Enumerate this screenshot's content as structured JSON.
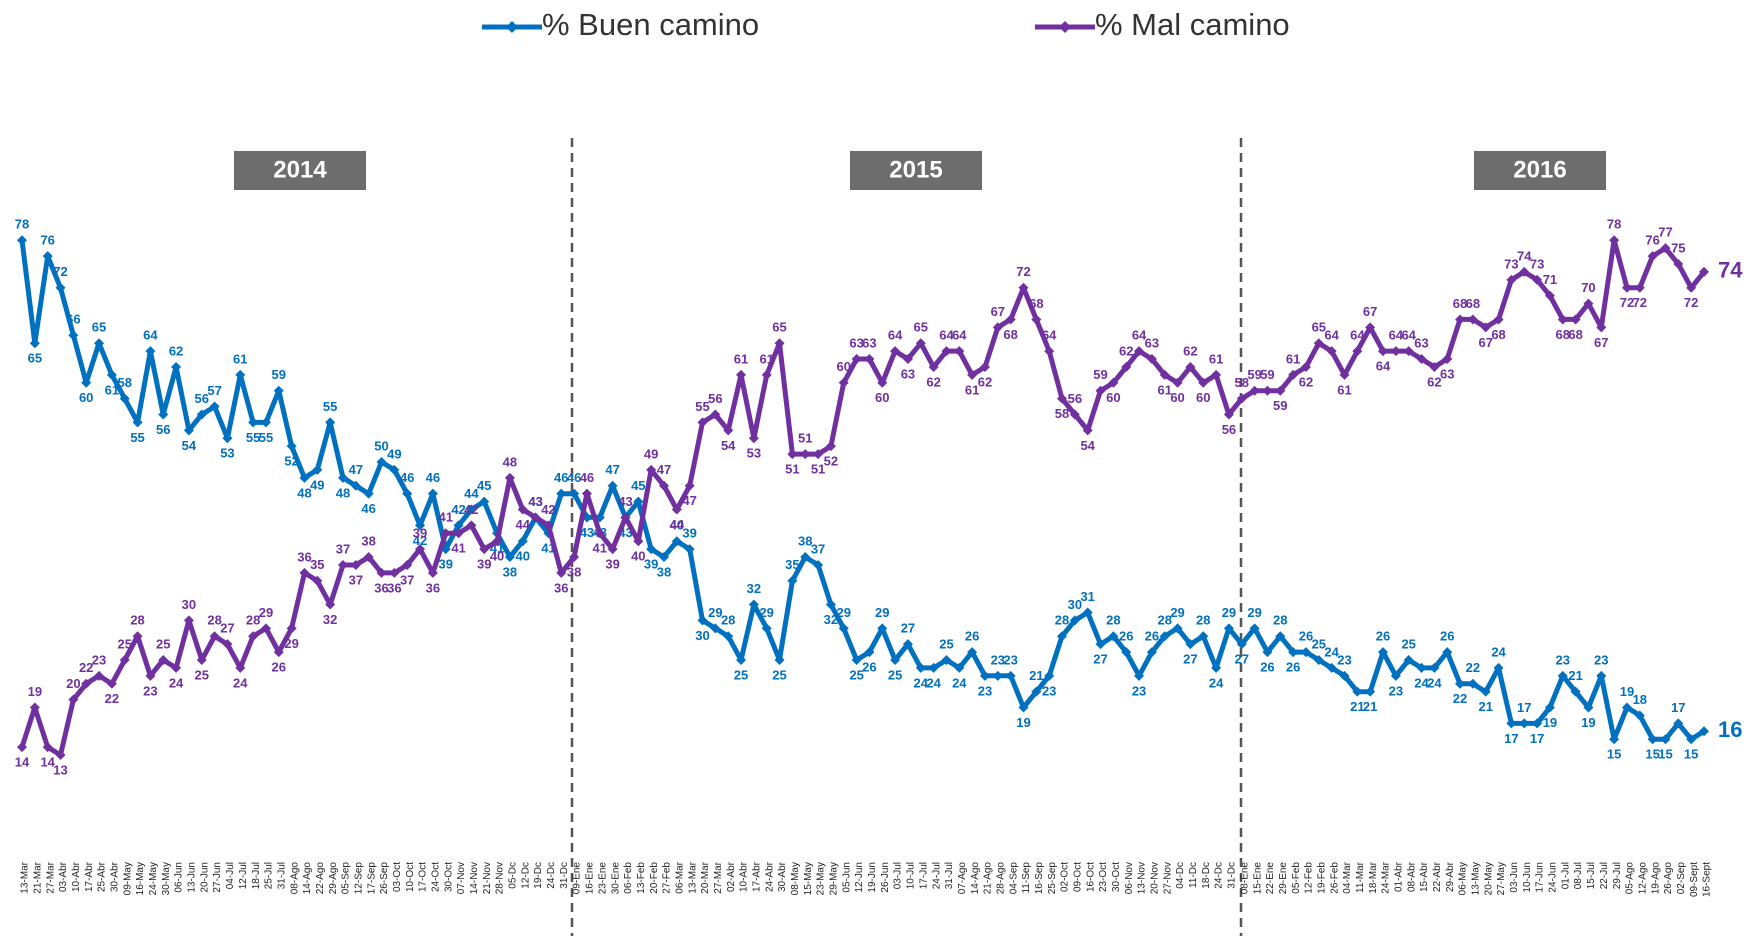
{
  "chart_data": {
    "type": "line",
    "legend": "top",
    "ylim": [
      0,
      100
    ],
    "periods": [
      "2014",
      "2015",
      "2016"
    ],
    "categories": [
      "13-Mar",
      "21-Mar",
      "27-Mar",
      "03-Abr",
      "10-Abr",
      "17-Abr",
      "25-Abr",
      "30-Abr",
      "09-May",
      "16-May",
      "24-May",
      "30-May",
      "06-Jun",
      "13-Jun",
      "20-Jun",
      "27-Jun",
      "04-Jul",
      "12-Jul",
      "18-Jul",
      "25-Jul",
      "31-Jul",
      "08-Ago",
      "14-Ago",
      "22-Ago",
      "29-Ago",
      "05-Sep",
      "12-Sep",
      "17-Sep",
      "26-Sep",
      "03-Oct",
      "10-Oct",
      "17-Oct",
      "24-Oct",
      "30-Oct",
      "07-Nov",
      "14-Nov",
      "21-Nov",
      "28-Nov",
      "05-Dc",
      "12-Dc",
      "19-Dc",
      "24-Dc",
      "31-Dc",
      "09-Ene",
      "16-Ene",
      "23-Ene",
      "30-Ene",
      "06-Feb",
      "13-Feb",
      "20-Feb",
      "27-Feb",
      "06-Mar",
      "13-Mar",
      "20-Mar",
      "27-Mar",
      "02-Abr",
      "10-Abr",
      "17-Abr",
      "24-Abr",
      "30-Abr",
      "08-May",
      "15-May",
      "23-May",
      "29-May",
      "05-Jun",
      "12-Jun",
      "19-Jun",
      "26-Jun",
      "03-Jul",
      "10-Jul",
      "17-Jul",
      "24-Jul",
      "31-Jul",
      "07-Ago",
      "14-Ago",
      "21-Ago",
      "28-Ago",
      "04-Sep",
      "11-Sep",
      "16-Sep",
      "25-Sep",
      "02-Oct",
      "09-Oct",
      "16-Oct",
      "23-Oct",
      "30-Oct",
      "06-Nov",
      "13-Nov",
      "20-Nov",
      "27-Nov",
      "04-Dc",
      "11-Dc",
      "18-Dc",
      "24-Dc",
      "31-Dc",
      "08-Ene",
      "15-Ene",
      "22-Ene",
      "29-Ene",
      "05-Feb",
      "12-Feb",
      "19-Feb",
      "26-Feb",
      "04-Mar",
      "11-Mar",
      "18-Mar",
      "24-Mar",
      "01-Abr",
      "08-Abr",
      "15-Abr",
      "22-Abr",
      "29-Abr",
      "06-May",
      "13-May",
      "20-May",
      "27-May",
      "03-Jun",
      "10-Jun",
      "17-Jun",
      "24-Jun",
      "01-Jul",
      "08-Jul",
      "15-Jul",
      "22-Jul",
      "29-Jul",
      "05-Ago",
      "12-Ago",
      "19-Ago",
      "26-Ago",
      "02-Sep",
      "09-Sept",
      "16-Sept"
    ],
    "series": [
      {
        "name": "% Buen camino",
        "color": "#0070c0",
        "values": [
          78,
          65,
          76,
          72,
          66,
          60,
          65,
          61,
          58,
          55,
          64,
          56,
          62,
          54,
          56,
          57,
          53,
          61,
          55,
          55,
          59,
          52,
          48,
          49,
          55,
          48,
          47,
          46,
          50,
          49,
          46,
          42,
          46,
          39,
          42,
          44,
          45,
          41,
          38,
          40,
          43,
          41,
          46,
          46,
          43,
          43,
          47,
          43,
          45,
          39,
          38,
          40,
          39,
          30,
          29,
          28,
          25,
          32,
          29,
          25,
          35,
          38,
          37,
          32,
          29,
          25,
          26,
          29,
          25,
          27,
          24,
          24,
          25,
          24,
          26,
          23,
          23,
          23,
          19,
          21,
          23,
          28,
          30,
          31,
          27,
          28,
          26,
          23,
          26,
          28,
          29,
          27,
          28,
          24,
          29,
          27,
          29,
          26,
          28,
          26,
          26,
          25,
          24,
          23,
          21,
          21,
          26,
          23,
          25,
          24,
          24,
          26,
          22,
          22,
          21,
          24,
          17,
          17,
          17,
          19,
          23,
          21,
          19,
          23,
          15,
          19,
          18,
          15,
          15,
          17,
          15,
          16
        ]
      },
      {
        "name": "% Mal camino",
        "color": "#7030a0",
        "values": [
          14,
          19,
          14,
          13,
          20,
          22,
          23,
          22,
          25,
          28,
          23,
          25,
          24,
          30,
          25,
          28,
          27,
          24,
          28,
          29,
          26,
          29,
          36,
          35,
          32,
          37,
          37,
          38,
          36,
          36,
          37,
          39,
          36,
          41,
          41,
          42,
          39,
          40,
          48,
          44,
          43,
          42,
          36,
          38,
          46,
          41,
          39,
          43,
          40,
          49,
          47,
          44,
          47,
          55,
          56,
          54,
          61,
          53,
          61,
          65,
          51,
          51,
          51,
          52,
          60,
          63,
          63,
          60,
          64,
          63,
          65,
          62,
          64,
          64,
          61,
          62,
          67,
          68,
          72,
          68,
          64,
          58,
          56,
          54,
          59,
          60,
          62,
          64,
          63,
          61,
          60,
          62,
          60,
          61,
          56,
          58,
          59,
          59,
          59,
          61,
          62,
          65,
          64,
          61,
          64,
          67,
          64,
          64,
          64,
          63,
          62,
          63,
          68,
          68,
          67,
          68,
          73,
          74,
          73,
          71,
          68,
          68,
          70,
          67,
          78,
          72,
          72,
          76,
          77,
          75,
          72,
          74
        ]
      }
    ]
  }
}
